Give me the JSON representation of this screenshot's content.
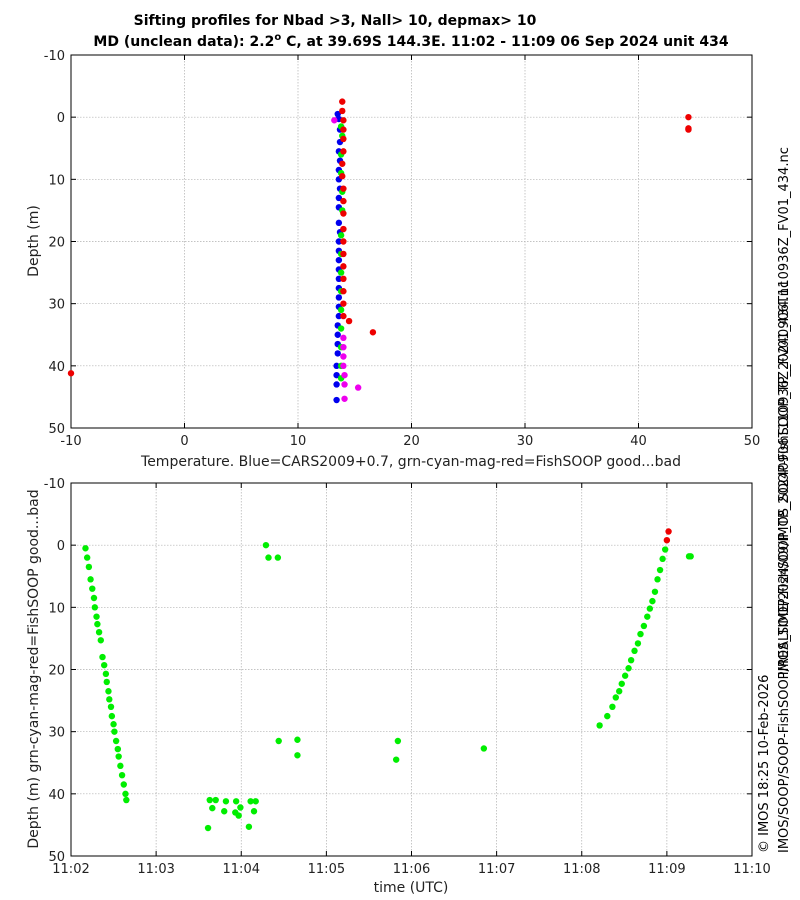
{
  "header": {
    "title_line1": "Sifting profiles for Nbad >3, Nall> 10, depmax> 10",
    "title_line2_prefix": "MD (unclean data): 2.2",
    "title_line2_sup": "o",
    "title_line2_suffix": " C, at 39.69S 144.3E. 11:02 - 11:09 06 Sep 2024 unit 434"
  },
  "side_labels": {
    "filename": "IMOS_SOOP-FishSOOP_TP_20240906T110936Z_FV01_434.nc",
    "credit": "© IMOS 18:25 10-Feb-2026",
    "path": "IMOS/SOOP/SOOP-FishSOOP/REALTIME/2024/09/IMOS_SOOP-FishSOOP_TP_20240906T110936Z_FV01_434.nc"
  },
  "colors": {
    "good": "#00ee00",
    "cyan": "#00dddd",
    "magenta": "#ee00ee",
    "bad": "#ee0000",
    "cars": "#0000ee",
    "grid": "#b0b0b0"
  },
  "chart_data": [
    {
      "type": "scatter",
      "xlabel": "Temperature. Blue=CARS2009+0.7, grn-cyan-mag-red=FishSOOP good...bad",
      "ylabel": "Depth (m)",
      "xlim": [
        -10,
        50
      ],
      "ylim": [
        50,
        -10
      ],
      "y_inverted": true,
      "xticks": [
        "-10",
        "0",
        "10",
        "20",
        "30",
        "40",
        "50"
      ],
      "yticks": [
        "-10",
        "0",
        "10",
        "20",
        "30",
        "40",
        "50"
      ],
      "grid": true,
      "series": [
        {
          "color_key": "cars",
          "points": [
            [
              13.5,
              -0.5
            ],
            [
              13.6,
              0.3
            ],
            [
              13.7,
              2.0
            ],
            [
              13.7,
              4.0
            ],
            [
              13.6,
              5.5
            ],
            [
              13.7,
              7.0
            ],
            [
              13.6,
              8.5
            ],
            [
              13.6,
              10.0
            ],
            [
              13.7,
              11.5
            ],
            [
              13.6,
              13.0
            ],
            [
              13.6,
              14.5
            ],
            [
              13.6,
              17.0
            ],
            [
              13.7,
              18.5
            ],
            [
              13.6,
              20.0
            ],
            [
              13.6,
              21.5
            ],
            [
              13.6,
              23.0
            ],
            [
              13.6,
              24.5
            ],
            [
              13.6,
              26.0
            ],
            [
              13.6,
              27.5
            ],
            [
              13.6,
              29.0
            ],
            [
              13.6,
              30.5
            ],
            [
              13.6,
              32.0
            ],
            [
              13.5,
              33.5
            ],
            [
              13.5,
              35.0
            ],
            [
              13.5,
              36.5
            ],
            [
              13.5,
              38.0
            ],
            [
              13.4,
              40.0
            ],
            [
              13.4,
              41.5
            ],
            [
              13.4,
              43.0
            ],
            [
              13.4,
              45.5
            ]
          ]
        },
        {
          "color_key": "good",
          "points": [
            [
              13.8,
              1.5
            ],
            [
              13.9,
              3.0
            ],
            [
              13.8,
              6.0
            ],
            [
              13.8,
              9.0
            ],
            [
              13.9,
              12.0
            ],
            [
              13.9,
              15.0
            ],
            [
              13.8,
              19.0
            ],
            [
              13.8,
              22.0
            ],
            [
              13.8,
              25.0
            ],
            [
              13.8,
              28.0
            ],
            [
              13.8,
              31.0
            ],
            [
              13.8,
              34.0
            ],
            [
              13.8,
              37.0
            ],
            [
              13.8,
              40.0
            ],
            [
              13.8,
              42.0
            ]
          ]
        },
        {
          "color_key": "magenta",
          "points": [
            [
              13.2,
              0.5
            ],
            [
              14.0,
              35.5
            ],
            [
              14.0,
              37.0
            ],
            [
              14.0,
              38.5
            ],
            [
              14.0,
              40.0
            ],
            [
              14.1,
              41.5
            ],
            [
              14.1,
              43.0
            ],
            [
              14.1,
              45.3
            ],
            [
              15.3,
              43.5
            ]
          ]
        },
        {
          "color_key": "bad",
          "points": [
            [
              13.9,
              -2.5
            ],
            [
              13.9,
              -1.0
            ],
            [
              14.0,
              0.5
            ],
            [
              14.0,
              2.0
            ],
            [
              14.0,
              3.5
            ],
            [
              14.0,
              5.5
            ],
            [
              13.9,
              7.5
            ],
            [
              13.9,
              9.5
            ],
            [
              14.0,
              11.5
            ],
            [
              14.0,
              13.5
            ],
            [
              14.0,
              15.5
            ],
            [
              14.0,
              18.0
            ],
            [
              14.0,
              20.0
            ],
            [
              14.0,
              22.0
            ],
            [
              14.0,
              24.0
            ],
            [
              14.0,
              26.0
            ],
            [
              14.0,
              28.0
            ],
            [
              14.0,
              30.0
            ],
            [
              14.0,
              32.0
            ],
            [
              14.5,
              32.8
            ],
            [
              16.6,
              34.6
            ],
            [
              -10.0,
              41.2
            ],
            [
              44.4,
              0.0
            ],
            [
              44.4,
              1.8
            ],
            [
              44.4,
              2.0
            ]
          ]
        }
      ]
    },
    {
      "type": "scatter",
      "xlabel": "time (UTC)",
      "ylabel": "Depth (m) grn-cyan-mag-red=FishSOOP good...bad",
      "xlim_minutes": [
        2,
        10
      ],
      "ylim": [
        50,
        -10
      ],
      "y_inverted": true,
      "xticks": [
        "11:02",
        "11:03",
        "11:04",
        "11:05",
        "11:06",
        "11:07",
        "11:08",
        "11:09",
        "11:10"
      ],
      "yticks": [
        "-10",
        "0",
        "10",
        "20",
        "30",
        "40",
        "50"
      ],
      "grid": true,
      "series": [
        {
          "color_key": "good",
          "points": [
            [
              2.17,
              0.5
            ],
            [
              2.19,
              2.0
            ],
            [
              2.21,
              3.5
            ],
            [
              2.23,
              5.5
            ],
            [
              2.25,
              7.0
            ],
            [
              2.27,
              8.5
            ],
            [
              2.28,
              10.0
            ],
            [
              2.3,
              11.5
            ],
            [
              2.31,
              12.7
            ],
            [
              2.33,
              14.0
            ],
            [
              2.35,
              15.3
            ],
            [
              2.37,
              18.0
            ],
            [
              2.39,
              19.3
            ],
            [
              2.41,
              20.7
            ],
            [
              2.42,
              22.0
            ],
            [
              2.44,
              23.5
            ],
            [
              2.45,
              24.8
            ],
            [
              2.47,
              26.0
            ],
            [
              2.48,
              27.5
            ],
            [
              2.5,
              28.8
            ],
            [
              2.51,
              30.0
            ],
            [
              2.53,
              31.5
            ],
            [
              2.55,
              32.8
            ],
            [
              2.56,
              34.0
            ],
            [
              2.58,
              35.5
            ],
            [
              2.6,
              37.0
            ],
            [
              2.62,
              38.5
            ],
            [
              2.64,
              40.0
            ],
            [
              2.65,
              41.0
            ],
            [
              3.61,
              45.5
            ],
            [
              3.63,
              41.0
            ],
            [
              3.66,
              42.3
            ],
            [
              3.7,
              41.0
            ],
            [
              3.8,
              42.8
            ],
            [
              3.82,
              41.2
            ],
            [
              3.93,
              43.0
            ],
            [
              3.94,
              41.2
            ],
            [
              3.97,
              43.5
            ],
            [
              3.99,
              42.2
            ],
            [
              4.09,
              45.3
            ],
            [
              4.11,
              41.2
            ],
            [
              4.15,
              42.8
            ],
            [
              4.17,
              41.2
            ],
            [
              4.29,
              0.0
            ],
            [
              4.32,
              2.0
            ],
            [
              4.43,
              2.0
            ],
            [
              4.44,
              31.5
            ],
            [
              4.66,
              31.3
            ],
            [
              4.66,
              33.8
            ],
            [
              5.82,
              34.5
            ],
            [
              5.84,
              31.5
            ],
            [
              6.85,
              32.7
            ],
            [
              8.21,
              29.0
            ],
            [
              8.3,
              27.5
            ],
            [
              8.36,
              26.0
            ],
            [
              8.4,
              24.5
            ],
            [
              8.44,
              23.5
            ],
            [
              8.47,
              22.3
            ],
            [
              8.51,
              21.0
            ],
            [
              8.55,
              19.8
            ],
            [
              8.58,
              18.5
            ],
            [
              8.62,
              17.0
            ],
            [
              8.66,
              15.8
            ],
            [
              8.69,
              14.3
            ],
            [
              8.73,
              13.0
            ],
            [
              8.77,
              11.5
            ],
            [
              8.8,
              10.2
            ],
            [
              8.83,
              9.0
            ],
            [
              8.86,
              7.5
            ],
            [
              8.89,
              5.5
            ],
            [
              8.92,
              4.0
            ],
            [
              8.95,
              2.2
            ],
            [
              8.98,
              0.7
            ],
            [
              9.26,
              1.8
            ],
            [
              9.28,
              1.8
            ]
          ]
        },
        {
          "color_key": "bad",
          "points": [
            [
              9.0,
              -0.8
            ],
            [
              9.02,
              -2.2
            ]
          ]
        }
      ]
    }
  ]
}
